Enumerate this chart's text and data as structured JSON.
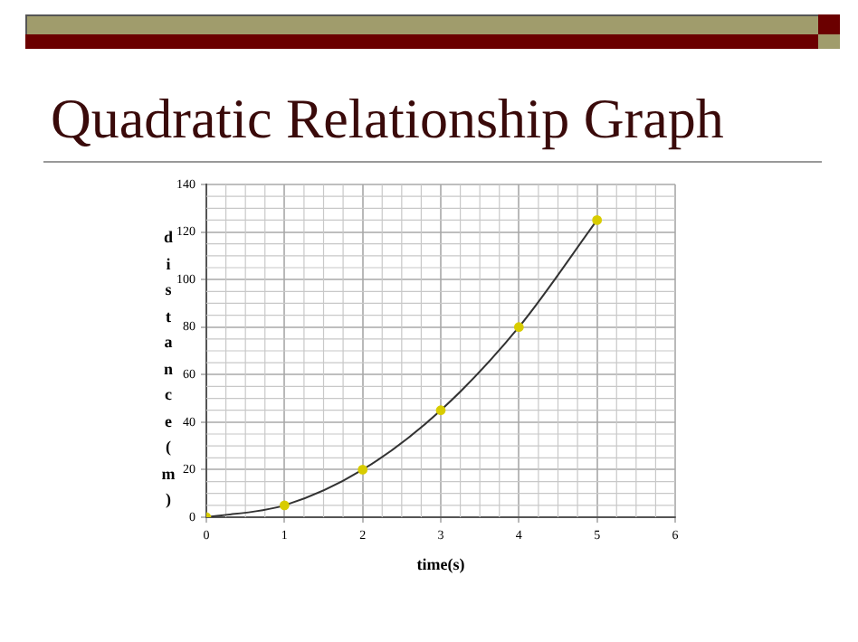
{
  "chart_data": {
    "type": "scatter",
    "title": "Quadratic Relationship Graph",
    "xlabel": "time(s)",
    "ylabel": "distance (m)",
    "x": [
      0,
      1,
      2,
      3,
      4,
      5
    ],
    "series": [
      {
        "type": "line",
        "color": "#333333",
        "marker": "none",
        "values": [
          0,
          5,
          20,
          45,
          80,
          125
        ]
      },
      {
        "color": "#d8cc00",
        "marker": "circle",
        "values": [
          0,
          5,
          20,
          45,
          80,
          125
        ]
      }
    ],
    "xlim": [
      0,
      6
    ],
    "xticks": [
      0,
      1,
      2,
      3,
      4,
      5,
      6
    ],
    "ylim": [
      0,
      140
    ],
    "yticks": [
      0,
      20,
      40,
      60,
      80,
      100,
      120,
      140
    ],
    "grid": true,
    "legend": false
  }
}
